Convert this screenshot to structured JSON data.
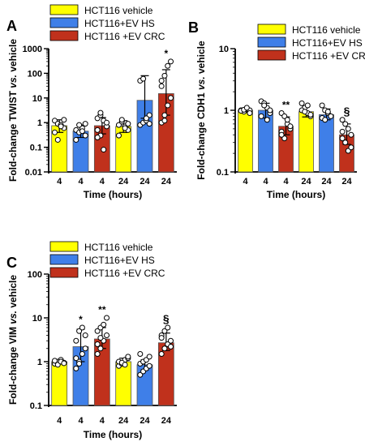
{
  "colors": {
    "vehicle": "#ffff00",
    "ev_hs": "#3f7fe8",
    "ev_crc": "#c0311c",
    "axis": "#000000"
  },
  "chart_data": [
    {
      "panel": "A",
      "type": "bar",
      "yscale": "log",
      "ylim": [
        0.01,
        1000
      ],
      "yticks": [
        "0.01",
        "0.1",
        "1",
        "10",
        "100",
        "1000"
      ],
      "ylabel": "Fold-change TWIST vs. vehicle",
      "xlabel": "Time (hours)",
      "categories": [
        "4",
        "4",
        "4",
        "24",
        "24",
        "24"
      ],
      "legend": [
        "HCT116 vehicle",
        "HCT116+EV HS",
        "HCT116 +EV CRC"
      ],
      "legend_position": "top",
      "series_index": [
        0,
        1,
        2,
        0,
        1,
        2
      ],
      "values": [
        0.75,
        0.45,
        0.75,
        0.7,
        8,
        15
      ],
      "errors": [
        [
          0.4,
          1.3
        ],
        [
          0.25,
          0.8
        ],
        [
          0.35,
          1.6
        ],
        [
          0.4,
          1.2
        ],
        [
          1.5,
          80
        ],
        [
          2,
          140
        ]
      ],
      "points": [
        [
          1.2,
          0.9,
          0.8,
          0.6,
          0.4,
          0.2,
          0.7,
          1.3
        ],
        [
          0.5,
          0.4,
          0.6,
          0.3,
          0.2,
          0.8,
          0.45,
          0.9
        ],
        [
          1.5,
          2,
          1.2,
          0.7,
          0.5,
          0.3,
          0.08,
          1,
          0.25,
          2.5
        ],
        [
          0.8,
          1.1,
          0.7,
          0.5,
          0.3,
          1.3,
          0.6,
          0.9
        ],
        [
          0.8,
          1,
          1.2,
          2,
          50,
          60,
          1.5,
          0.9
        ],
        [
          1,
          2,
          5,
          10,
          30,
          80,
          200,
          300,
          50,
          1.2
        ]
      ],
      "annotations": [
        {
          "index": 5,
          "text": "*"
        }
      ]
    },
    {
      "panel": "B",
      "type": "bar",
      "yscale": "log",
      "ylim": [
        0.1,
        10
      ],
      "yticks": [
        "0.1",
        "1",
        "10"
      ],
      "ylabel": "Fold-change CDH1 vs. vehicle",
      "xlabel": "Time (hours)",
      "categories": [
        "4",
        "4",
        "4",
        "24",
        "24",
        "24"
      ],
      "legend": [
        "HCT116 vehicle",
        "HCT116+EV HS",
        "HCT116 +EV CRC"
      ],
      "legend_position": "top",
      "series_index": [
        0,
        1,
        2,
        0,
        1,
        2
      ],
      "values": [
        1.0,
        1.0,
        0.55,
        0.95,
        0.85,
        0.4
      ],
      "errors": [
        [
          0.92,
          1.08
        ],
        [
          0.75,
          1.3
        ],
        [
          0.4,
          0.78
        ],
        [
          0.78,
          1.15
        ],
        [
          0.7,
          1.05
        ],
        [
          0.28,
          0.6
        ]
      ],
      "points": [
        [
          1,
          0.95,
          1.05,
          1,
          0.98,
          1.02,
          1.1,
          0.9
        ],
        [
          1.4,
          1.3,
          1.1,
          0.9,
          0.8,
          1.2,
          0.7,
          1.0
        ],
        [
          0.9,
          0.8,
          0.6,
          0.5,
          0.45,
          0.35,
          0.7,
          0.55,
          0.4
        ],
        [
          1.3,
          1.1,
          0.9,
          0.8,
          1,
          0.95,
          1.2,
          0.85
        ],
        [
          1.2,
          1,
          0.9,
          0.8,
          0.75,
          0.7,
          0.95
        ],
        [
          0.7,
          0.6,
          0.5,
          0.4,
          0.35,
          0.3,
          0.22,
          0.25,
          0.45
        ]
      ],
      "annotations": [
        {
          "index": 2,
          "text": "**"
        },
        {
          "index": 5,
          "text": "§"
        }
      ]
    },
    {
      "panel": "C",
      "type": "bar",
      "yscale": "log",
      "ylim": [
        0.1,
        100
      ],
      "yticks": [
        "0.1",
        "1",
        "10",
        "100"
      ],
      "ylabel": "Fold-change VIM vs. vehicle",
      "xlabel": "Time (hours)",
      "categories": [
        "4",
        "4",
        "4",
        "24",
        "24",
        "24"
      ],
      "legend": [
        "HCT116 vehicle",
        "HCT116+EV HS",
        "HCT116 +EV CRC"
      ],
      "legend_position": "top",
      "series_index": [
        0,
        1,
        2,
        0,
        1,
        2
      ],
      "values": [
        1.0,
        2.2,
        3.3,
        1.0,
        0.85,
        2.7
      ],
      "errors": [
        [
          0.9,
          1.1
        ],
        [
          1.0,
          5.5
        ],
        [
          2.0,
          6.0
        ],
        [
          0.85,
          1.2
        ],
        [
          0.65,
          1.1
        ],
        [
          1.8,
          4.5
        ]
      ],
      "points": [
        [
          0.9,
          1,
          1.1,
          0.95,
          1.05,
          0.85,
          1,
          0.92
        ],
        [
          0.7,
          1,
          1.5,
          2,
          3,
          5,
          6,
          4,
          1.2,
          0.9
        ],
        [
          1.5,
          2,
          3,
          4,
          5,
          6,
          7,
          10,
          2.5,
          3.5
        ],
        [
          0.8,
          0.9,
          1.1,
          1.2,
          1,
          0.95,
          0.85,
          1.3
        ],
        [
          0.5,
          0.6,
          0.7,
          0.8,
          0.9,
          1,
          1.1,
          1.3,
          1.5
        ],
        [
          1.5,
          2,
          2.5,
          3,
          4,
          5,
          6,
          2.2,
          3.5
        ]
      ],
      "annotations": [
        {
          "index": 1,
          "text": "*"
        },
        {
          "index": 2,
          "text": "**"
        },
        {
          "index": 5,
          "text": "§"
        }
      ]
    }
  ]
}
